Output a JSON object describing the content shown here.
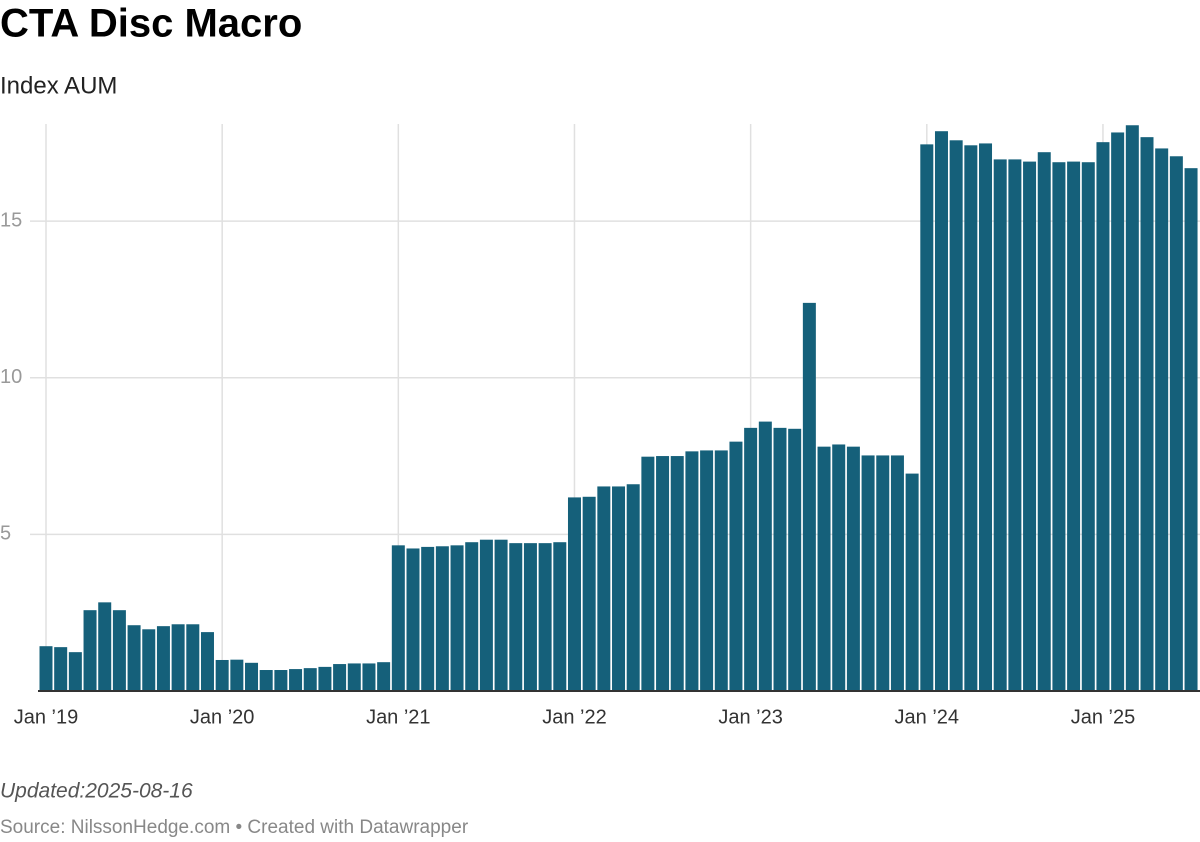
{
  "chart_data": {
    "type": "bar",
    "title": "CTA Disc Macro",
    "subtitle": "Index AUM",
    "note": "Updated:2025-08-16",
    "source": "Source: NilssonHedge.com • Created with Datawrapper",
    "color": "#15607a",
    "grid": true,
    "categories": [
      "Jan ’19",
      null,
      null,
      null,
      null,
      null,
      null,
      null,
      null,
      null,
      null,
      null,
      "Jan ’20",
      null,
      null,
      null,
      null,
      null,
      null,
      null,
      null,
      null,
      null,
      null,
      "Jan ’21",
      null,
      null,
      null,
      null,
      null,
      null,
      null,
      null,
      null,
      null,
      null,
      "Jan ’22",
      null,
      null,
      null,
      null,
      null,
      null,
      null,
      null,
      null,
      null,
      null,
      "Jan ’23",
      null,
      null,
      null,
      null,
      null,
      null,
      null,
      null,
      null,
      null,
      null,
      "Jan ’24",
      null,
      null,
      null,
      null,
      null,
      null,
      null,
      null,
      null,
      null,
      null,
      "Jan ’25",
      null,
      null,
      null,
      null,
      null,
      null
    ],
    "values": [
      1.43,
      1.4,
      1.24,
      2.58,
      2.83,
      2.58,
      2.1,
      1.97,
      2.07,
      2.13,
      2.13,
      1.88,
      0.99,
      1.0,
      0.9,
      0.67,
      0.67,
      0.7,
      0.73,
      0.77,
      0.86,
      0.88,
      0.88,
      0.92,
      4.65,
      4.55,
      4.6,
      4.62,
      4.65,
      4.75,
      4.83,
      4.83,
      4.72,
      4.72,
      4.72,
      4.75,
      6.18,
      6.2,
      6.53,
      6.53,
      6.6,
      7.48,
      7.5,
      7.5,
      7.65,
      7.68,
      7.68,
      7.96,
      8.4,
      8.6,
      8.4,
      8.37,
      12.39,
      7.8,
      7.87,
      7.8,
      7.52,
      7.52,
      7.52,
      6.94,
      17.45,
      17.87,
      17.58,
      17.42,
      17.48,
      16.97,
      16.97,
      16.9,
      17.2,
      16.88,
      16.9,
      16.88,
      17.52,
      17.83,
      18.06,
      17.68,
      17.32,
      17.07,
      16.69
    ],
    "ylim": [
      0,
      18.1
    ],
    "yticks": [
      5,
      10,
      15
    ]
  }
}
